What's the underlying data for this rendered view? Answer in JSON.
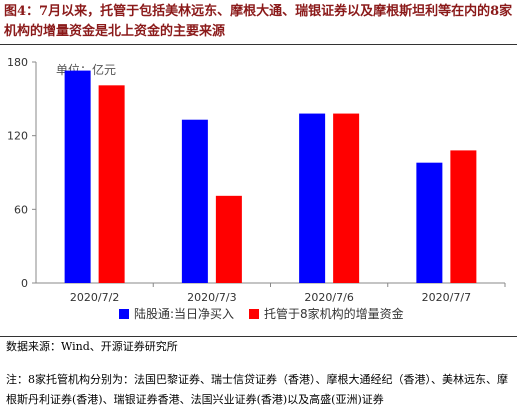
{
  "caption": "图4：7月以来，托管于包括美林远东、摩根大通、瑞银证券以及摩根斯坦利等在内的8家机构的增量资金是北上资金的主要来源",
  "source": "数据来源：Wind、开源证券研究所",
  "note": "注：8家托管机构分别为：法国巴黎证券、瑞士信贷证券（香港）、摩根大通经纪（香港）、美林远东、摩根斯丹利证券(香港)、瑞银证券香港、法国兴业证券(香港)以及高盛(亚洲)证券",
  "chart_data": {
    "type": "bar",
    "unit_label": "单位：亿元",
    "categories": [
      "2020/7/2",
      "2020/7/3",
      "2020/7/6",
      "2020/7/7"
    ],
    "series": [
      {
        "name": "陆股通:当日净买入",
        "values": [
          173,
          133,
          138,
          98
        ],
        "color": "#0000ff"
      },
      {
        "name": "托管于8家机构的增量资金",
        "values": [
          161,
          71,
          138,
          108
        ],
        "color": "#ff0000"
      }
    ],
    "ylim": [
      0,
      180
    ],
    "yticks": [
      0,
      60,
      120,
      180
    ],
    "grid": false,
    "legend": "bottom"
  }
}
